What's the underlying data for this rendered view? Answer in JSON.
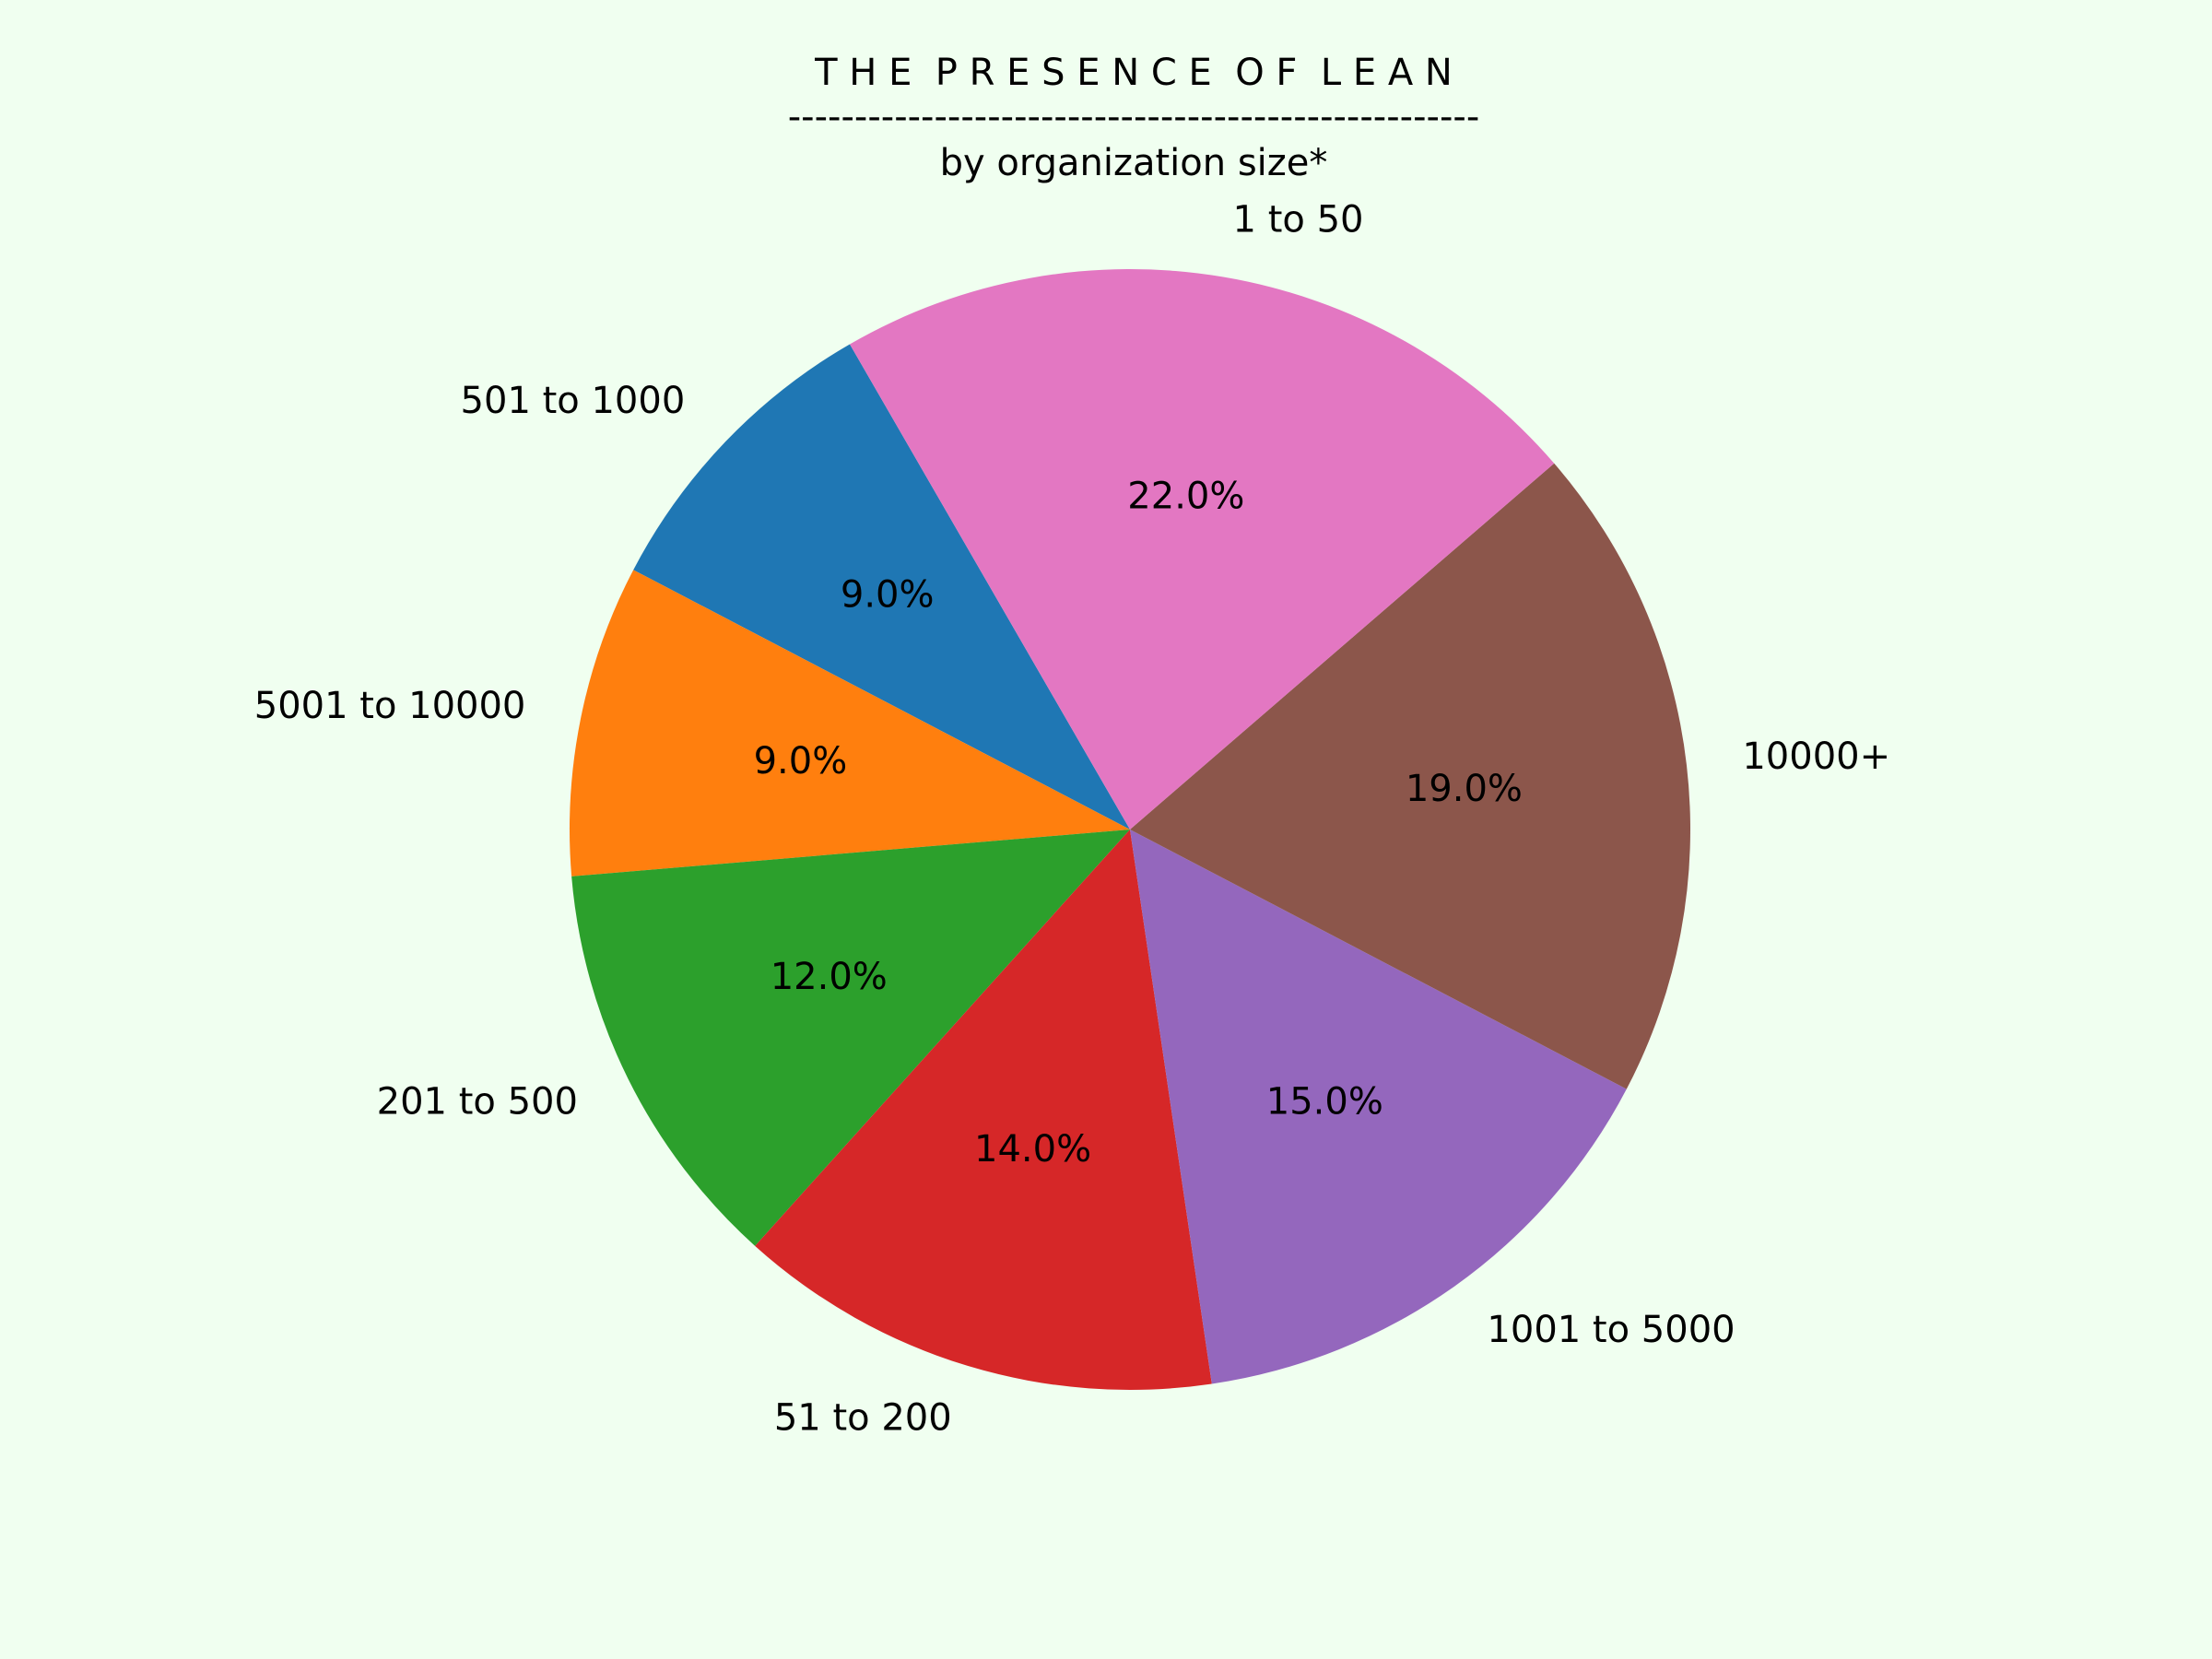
{
  "background": "#f0fff0",
  "title": {
    "main": "T H E  P R E S E N C E  O F  L E A N",
    "rule": "----------------------------------------------------",
    "subtitle": "by organization size*"
  },
  "chart_data": {
    "type": "pie",
    "title": "T H E  P R E S E N C E  O F  L E A N",
    "subtitle": "by organization size*",
    "start_angle_deg": 120,
    "direction": "counterclockwise",
    "slices": [
      {
        "label": "501 to 1000",
        "value": 9.0,
        "pct_label": "9.0%",
        "color": "#1f77b4"
      },
      {
        "label": "5001 to 10000",
        "value": 9.0,
        "pct_label": "9.0%",
        "color": "#ff7f0e"
      },
      {
        "label": "201 to 500",
        "value": 12.0,
        "pct_label": "12.0%",
        "color": "#2ca02c"
      },
      {
        "label": "51 to 200",
        "value": 14.0,
        "pct_label": "14.0%",
        "color": "#d62728"
      },
      {
        "label": "1001 to 5000",
        "value": 15.0,
        "pct_label": "15.0%",
        "color": "#9467bd"
      },
      {
        "label": "10000+",
        "value": 19.0,
        "pct_label": "19.0%",
        "color": "#8c564b"
      },
      {
        "label": "1 to 50",
        "value": 22.0,
        "pct_label": "22.0%",
        "color": "#e377c2"
      }
    ]
  }
}
